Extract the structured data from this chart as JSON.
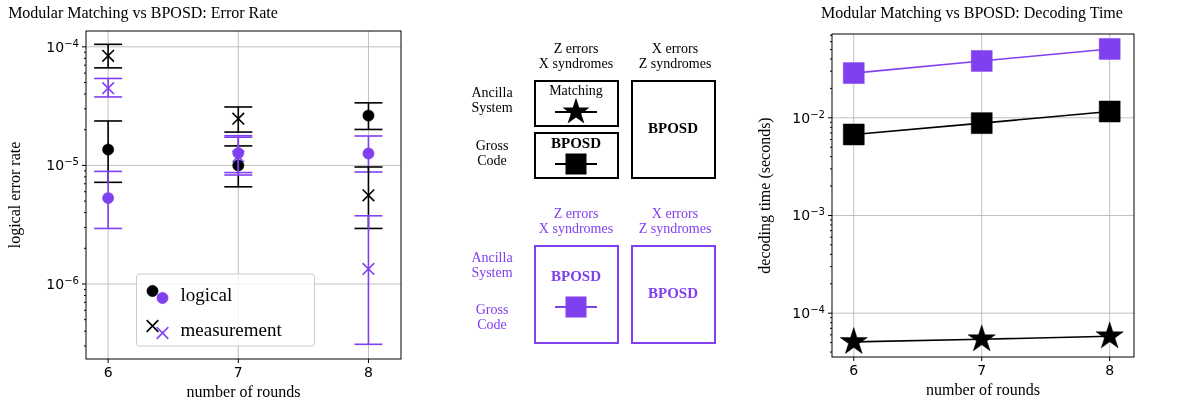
{
  "chart_data": [
    {
      "type": "scatter",
      "title": "Modular Matching vs BPOSD: Error Rate",
      "xlabel": "number of rounds",
      "ylabel": "logical error rate",
      "x": [
        6,
        7,
        8
      ],
      "xlim": [
        5.83,
        8.25
      ],
      "xticks": [
        6,
        7,
        8
      ],
      "ylim": [
        2.33e-07,
        0.000136
      ],
      "log": "y",
      "grid": true,
      "legend": "bottom",
      "yticks": [
        {
          "value": 3e-07,
          "label": null
        },
        {
          "value": 4e-07,
          "label": null
        },
        {
          "value": 5e-07,
          "label": null
        },
        {
          "value": 6e-07,
          "label": null
        },
        {
          "value": 7e-07,
          "label": null
        },
        {
          "value": 8e-07,
          "label": null
        },
        {
          "value": 9e-07,
          "label": null
        },
        {
          "value": 1e-06,
          "label": "10$^{−6}$"
        },
        {
          "value": 2e-06,
          "label": null
        },
        {
          "value": 3e-06,
          "label": null
        },
        {
          "value": 4e-06,
          "label": null
        },
        {
          "value": 5e-06,
          "label": null
        },
        {
          "value": 6e-06,
          "label": null
        },
        {
          "value": 7e-06,
          "label": null
        },
        {
          "value": 8e-06,
          "label": null
        },
        {
          "value": 9e-06,
          "label": null
        },
        {
          "value": 1e-05,
          "label": "10$^{−5}$"
        },
        {
          "value": 2e-05,
          "label": null
        },
        {
          "value": 3e-05,
          "label": null
        },
        {
          "value": 4e-05,
          "label": null
        },
        {
          "value": 5e-05,
          "label": null
        },
        {
          "value": 6e-05,
          "label": null
        },
        {
          "value": 7e-05,
          "label": null
        },
        {
          "value": 8e-05,
          "label": null
        },
        {
          "value": 9e-05,
          "label": null
        },
        {
          "value": 0.0001,
          "label": "10$^{−4}$"
        }
      ],
      "series": [
        {
          "name": "logical",
          "color": "#000000",
          "marker": "circle",
          "values": [
            1.36e-05,
            1e-05,
            2.63e-05
          ],
          "errors": [
            [
              7.2e-06,
              2.37e-05
            ],
            [
              6.6e-06,
              1.46e-05
            ],
            [
              2.01e-05,
              3.37e-05
            ]
          ]
        },
        {
          "color": "#8040f0",
          "marker": "circle",
          "values": [
            5.3e-06,
            1.27e-05,
            1.26e-05
          ],
          "errors": [
            [
              2.94e-06,
              8.9e-06
            ],
            [
              8.7e-06,
              1.73e-05
            ],
            [
              8.8e-06,
              1.77e-05
            ]
          ]
        },
        {
          "name": "measurement",
          "color": "#000000",
          "marker": "cross",
          "values": [
            8.4e-05,
            2.48e-05,
            5.6e-06
          ],
          "errors": [
            [
              6.65e-05,
              0.000105
            ],
            [
              1.91e-05,
              3.11e-05
            ],
            [
              2.94e-06,
              9.7e-06
            ]
          ]
        },
        {
          "color": "#8040f0",
          "marker": "cross",
          "values": [
            4.48e-05,
            1.19e-05,
            1.34e-06
          ],
          "errors": [
            [
              3.78e-05,
              5.41e-05
            ],
            [
              8.3e-06,
              1.78e-05
            ],
            [
              3.1e-07,
              3.76e-06
            ]
          ]
        }
      ]
    },
    {
      "type": "other",
      "colors": [
        "#000000",
        "#8040f0"
      ],
      "annotations": [
        "Z errors\nX syndromes",
        "X errors\nZ syndromes",
        "Ancilla\nSystem",
        "Gross\nCode",
        "Matching",
        "BPOSD",
        "BPOSD",
        "Z errors\nX syndromes",
        "X errors\nZ syndromes",
        "Ancilla\nSystem",
        "Gross\nCode",
        "BPOSD",
        "BPOSD"
      ]
    },
    {
      "type": "line",
      "title": "Modular Matching vs BPOSD: Decoding Time",
      "xlabel": "number of rounds",
      "ylabel": "decoding time (seconds)",
      "x": [
        6,
        7,
        8
      ],
      "xlim": [
        5.83,
        8.19
      ],
      "xticks": [
        6,
        7,
        8
      ],
      "ylim": [
        3.56e-05,
        0.0721
      ],
      "log": "y",
      "grid": true,
      "yticks": [
        {
          "value": 4e-05,
          "label": null
        },
        {
          "value": 5e-05,
          "label": null
        },
        {
          "value": 6e-05,
          "label": null
        },
        {
          "value": 7e-05,
          "label": null
        },
        {
          "value": 8e-05,
          "label": null
        },
        {
          "value": 9e-05,
          "label": null
        },
        {
          "value": 0.0001,
          "label": "10$^{−4}$"
        },
        {
          "value": 0.0002,
          "label": null
        },
        {
          "value": 0.0003,
          "label": null
        },
        {
          "value": 0.0004,
          "label": null
        },
        {
          "value": 0.0005,
          "label": null
        },
        {
          "value": 0.0006,
          "label": null
        },
        {
          "value": 0.0007,
          "label": null
        },
        {
          "value": 0.0008,
          "label": null
        },
        {
          "value": 0.0009,
          "label": null
        },
        {
          "value": 0.001,
          "label": "10$^{−3}$"
        },
        {
          "value": 0.002,
          "label": null
        },
        {
          "value": 0.003,
          "label": null
        },
        {
          "value": 0.004,
          "label": null
        },
        {
          "value": 0.005,
          "label": null
        },
        {
          "value": 0.006,
          "label": null
        },
        {
          "value": 0.007,
          "label": null
        },
        {
          "value": 0.008,
          "label": null
        },
        {
          "value": 0.009,
          "label": null
        },
        {
          "value": 0.01,
          "label": "10$^{−2}$"
        },
        {
          "value": 0.02,
          "label": null
        },
        {
          "value": 0.03,
          "label": null
        },
        {
          "value": 0.04,
          "label": null
        },
        {
          "value": 0.05,
          "label": null
        },
        {
          "value": 0.06,
          "label": null
        },
        {
          "value": 0.07,
          "label": null
        }
      ],
      "series": [
        {
          "color": "#8040f0",
          "marker": "square",
          "values": [
            0.0287,
            0.0382,
            0.0507
          ]
        },
        {
          "color": "#000000",
          "marker": "square",
          "values": [
            0.00675,
            0.00882,
            0.0116
          ]
        },
        {
          "color": "#000000",
          "marker": "star",
          "values": [
            5.08e-05,
            5.41e-05,
            5.8e-05
          ]
        }
      ]
    }
  ]
}
